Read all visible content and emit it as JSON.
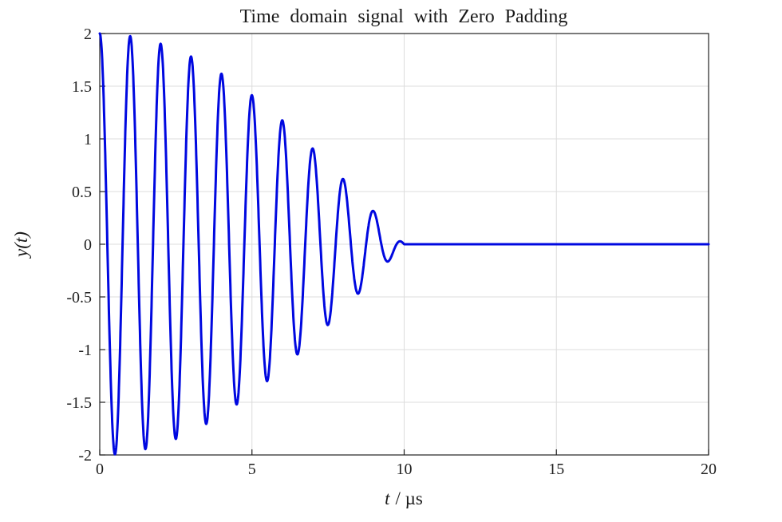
{
  "chart_data": {
    "type": "line",
    "title": "Time domain signal with Zero Padding",
    "xlabel": "t / µs",
    "xlabel_var": "t",
    "xlabel_unit": "/ µs",
    "ylabel": "y(t)",
    "xlim": [
      0,
      20
    ],
    "ylim": [
      -2,
      2
    ],
    "xticks": [
      0,
      5,
      10,
      15,
      20
    ],
    "xtick_labels": [
      "0",
      "5",
      "10",
      "15",
      "20"
    ],
    "yticks": [
      -2,
      -1.5,
      -1,
      -0.5,
      0,
      0.5,
      1,
      1.5,
      2
    ],
    "ytick_labels": [
      "-2",
      "-1.5",
      "-1",
      "-0.5",
      "0",
      "0.5",
      "1",
      "1.5",
      "2"
    ],
    "grid": true,
    "legend": "none",
    "line_color": "#0008e0",
    "grid_color": "#dcdcdc",
    "axis_color": "#222222",
    "series": [
      {
        "name": "y(t)",
        "model": "y(t) = 2*cos(pi*t/20)*cos(2*pi*t) for 0 <= t <= 10 us; y(t) = 0 for 10 < t <= 20 us (zero padding)",
        "amplitude": 2,
        "carrier_period_us": 1,
        "envelope": "cosine",
        "signal_end_us": 10,
        "pad_end_us": 20,
        "sample_step_us": 0.01,
        "envelope_peaks": {
          "t_us": [
            0,
            1,
            2,
            3,
            4,
            5,
            6,
            7,
            8,
            9,
            10
          ],
          "y": [
            2,
            1.98,
            1.9,
            1.78,
            1.62,
            1.41,
            1.18,
            0.91,
            0.62,
            0.31,
            0
          ]
        },
        "zero_padding_value": 0
      }
    ]
  }
}
